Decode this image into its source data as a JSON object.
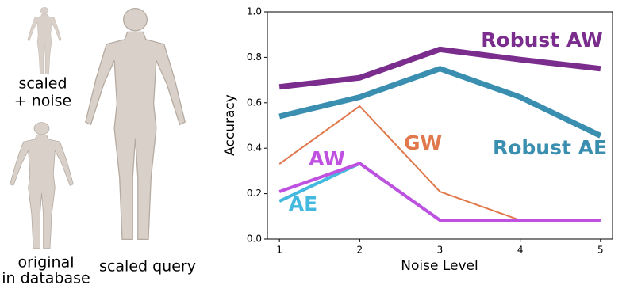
{
  "panel": {
    "labels": [
      [
        "scaled",
        "+ noise"
      ],
      [
        "original",
        "in database"
      ],
      [
        "scaled query"
      ]
    ]
  },
  "chart_data": {
    "type": "line",
    "x_label": "Noise Level",
    "y_label": "Accuracy",
    "x": [
      1,
      2,
      3,
      4,
      5
    ],
    "xlim": [
      0.85,
      5.15
    ],
    "xticks": [
      1,
      2,
      3,
      4,
      5
    ],
    "ylim": [
      0,
      1
    ],
    "yticks": [
      {
        "value": 0,
        "label": "0.0"
      },
      0.2,
      0.4,
      0.6,
      0.8,
      {
        "value": 1,
        "label": "1.0"
      }
    ],
    "series": [
      {
        "name": "Robust AW",
        "color": "#7b2d8e",
        "values": [
          0.67,
          0.71,
          0.835,
          0.79,
          0.75
        ]
      },
      {
        "name": "Robust AE",
        "color": "#3a8fb0",
        "values": [
          0.54,
          0.625,
          0.75,
          0.625,
          0.455
        ]
      },
      {
        "name": "GW",
        "color": "#e0784c",
        "values": [
          0.331,
          0.585,
          0.209,
          0.083,
          0.083
        ]
      },
      {
        "name": "AE",
        "color": "#45b8e0",
        "values": [
          0.167,
          0.333,
          0.083,
          0.083,
          0.083
        ]
      },
      {
        "name": "AW",
        "color": "#c050e0",
        "values": [
          0.209,
          0.333,
          0.083,
          0.083,
          0.083
        ]
      }
    ]
  }
}
